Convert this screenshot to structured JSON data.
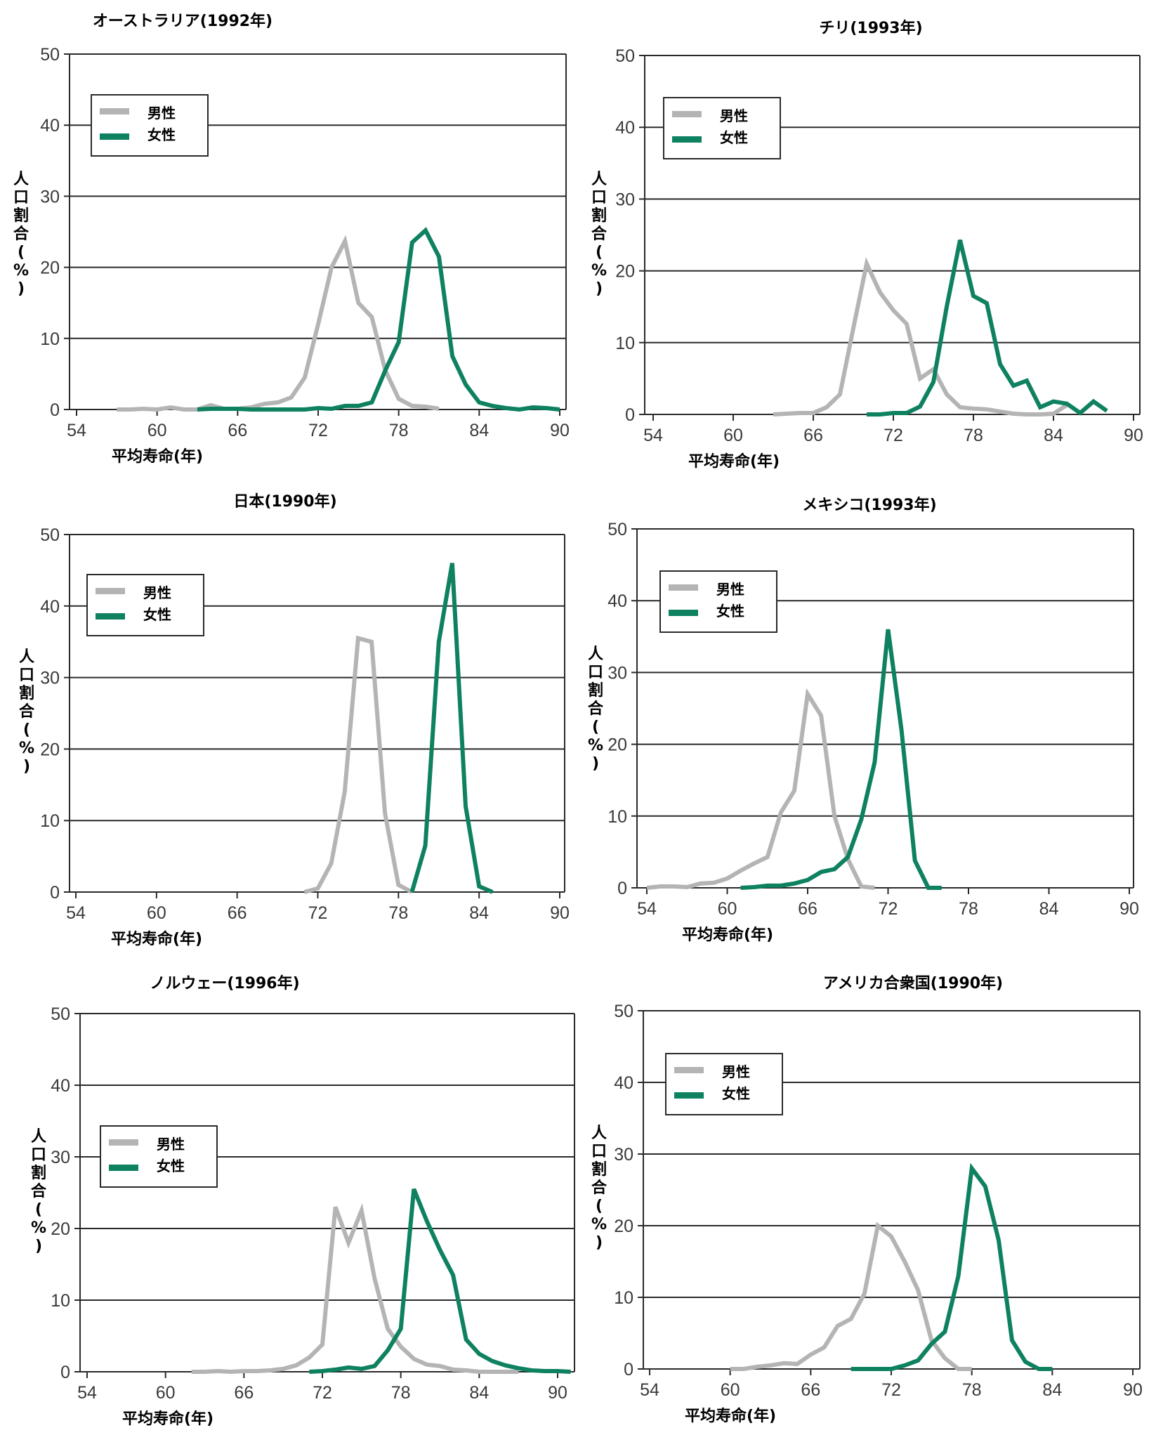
{
  "colors": {
    "male": "#b4b4b4",
    "female": "#0e8160",
    "grid": "#2a2a2a",
    "axis": "#2a2a2a"
  },
  "legend": {
    "male": "男性",
    "female": "女性"
  },
  "axis_text": {
    "xlabel": "平均寿命(年)",
    "ylabel": [
      "人",
      "口",
      "割",
      "合",
      "(",
      "%",
      ")"
    ]
  },
  "chart_data": [
    {
      "type": "line",
      "title": "オーストラリア(1992年)",
      "xlabel": "平均寿命(年)",
      "ylabel": "人口割合(%)",
      "xlim": [
        54,
        90
      ],
      "ylim": [
        0,
        50
      ],
      "xticks": [
        54,
        60,
        66,
        72,
        78,
        84,
        90
      ],
      "yticks": [
        0,
        10,
        20,
        30,
        40,
        50
      ],
      "grid": true,
      "legend_position": "top-left",
      "series": [
        {
          "name": "男性",
          "x": [
            57,
            58,
            59,
            60,
            61,
            62,
            63,
            64,
            65,
            66,
            67,
            68,
            69,
            70,
            71,
            72,
            73,
            74,
            75,
            76,
            77,
            78,
            79,
            80,
            81
          ],
          "values": [
            0,
            0,
            0.1,
            0,
            0.3,
            0,
            0,
            0.6,
            0.1,
            0.1,
            0.3,
            0.8,
            1,
            1.7,
            4.5,
            12,
            20,
            23.7,
            15,
            13,
            5.5,
            1.5,
            0.5,
            0.4,
            0.1
          ]
        },
        {
          "name": "女性",
          "x": [
            63,
            64,
            65,
            66,
            67,
            68,
            69,
            70,
            71,
            72,
            73,
            74,
            75,
            76,
            77,
            78,
            79,
            80,
            81,
            82,
            83,
            84,
            85,
            86,
            87,
            88,
            89,
            90
          ],
          "values": [
            0,
            0.1,
            0.1,
            0.1,
            0,
            0,
            0,
            0,
            0,
            0.2,
            0.1,
            0.5,
            0.5,
            1,
            5.5,
            9.5,
            23.5,
            25.2,
            21.5,
            7.5,
            3.5,
            1,
            0.5,
            0.2,
            0,
            0.3,
            0.2,
            0
          ]
        }
      ]
    },
    {
      "type": "line",
      "title": "チリ(1993年)",
      "xlabel": "平均寿命(年)",
      "ylabel": "人口割合(%)",
      "xlim": [
        54,
        90
      ],
      "ylim": [
        0,
        50
      ],
      "xticks": [
        54,
        60,
        66,
        72,
        78,
        84,
        90
      ],
      "yticks": [
        0,
        10,
        20,
        30,
        40,
        50
      ],
      "grid": true,
      "legend_position": "top-left",
      "series": [
        {
          "name": "男性",
          "x": [
            63,
            64,
            65,
            66,
            67,
            68,
            69,
            70,
            71,
            72,
            73,
            74,
            75,
            76,
            77,
            78,
            79,
            80,
            81,
            82,
            83,
            84,
            85
          ],
          "values": [
            0,
            0.1,
            0.2,
            0.2,
            1,
            2.8,
            12,
            21,
            17,
            14.5,
            12.6,
            5,
            6.3,
            2.8,
            1,
            0.8,
            0.7,
            0.4,
            0.1,
            0,
            0,
            0.1,
            1.3
          ]
        },
        {
          "name": "女性",
          "x": [
            70,
            71,
            72,
            73,
            74,
            75,
            76,
            77,
            78,
            79,
            80,
            81,
            82,
            83,
            84,
            85,
            86,
            87,
            88
          ],
          "values": [
            0,
            0,
            0.2,
            0.2,
            1.1,
            4.5,
            15,
            24.3,
            16.5,
            15.5,
            7,
            4,
            4.7,
            1,
            1.8,
            1.5,
            0.2,
            1.8,
            0.5
          ]
        }
      ]
    },
    {
      "type": "line",
      "title": "日本(1990年)",
      "xlabel": "平均寿命(年)",
      "ylabel": "人口割合(%)",
      "xlim": [
        54,
        90
      ],
      "ylim": [
        0,
        50
      ],
      "xticks": [
        54,
        60,
        66,
        72,
        78,
        84,
        90
      ],
      "yticks": [
        0,
        10,
        20,
        30,
        40,
        50
      ],
      "grid": true,
      "legend_position": "top-left",
      "series": [
        {
          "name": "男性",
          "x": [
            71,
            72,
            73,
            74,
            75,
            76,
            77,
            78,
            79
          ],
          "values": [
            0,
            0.5,
            4,
            14,
            35.5,
            35,
            11,
            1,
            0
          ]
        },
        {
          "name": "女性",
          "x": [
            79,
            80,
            81,
            82,
            83,
            84,
            85
          ],
          "values": [
            0,
            6.5,
            35,
            46,
            12,
            0.8,
            0
          ]
        }
      ]
    },
    {
      "type": "line",
      "title": "メキシコ(1993年)",
      "xlabel": "平均寿命(年)",
      "ylabel": "人口割合(%)",
      "xlim": [
        54,
        90
      ],
      "ylim": [
        0,
        50
      ],
      "xticks": [
        54,
        60,
        66,
        72,
        78,
        84,
        90
      ],
      "yticks": [
        0,
        10,
        20,
        30,
        40,
        50
      ],
      "grid": true,
      "legend_position": "top-left",
      "series": [
        {
          "name": "男性",
          "x": [
            54,
            55,
            56,
            57,
            58,
            59,
            60,
            61,
            62,
            63,
            64,
            65,
            66,
            67,
            68,
            69,
            70,
            71
          ],
          "values": [
            0,
            0.2,
            0.2,
            0.1,
            0.6,
            0.7,
            1.3,
            2.4,
            3.4,
            4.3,
            10.5,
            13.5,
            27,
            24,
            10,
            4,
            0.2,
            0
          ]
        },
        {
          "name": "女性",
          "x": [
            61,
            62,
            63,
            64,
            65,
            66,
            67,
            68,
            69,
            70,
            71,
            72,
            73,
            74,
            75,
            76
          ],
          "values": [
            0,
            0.1,
            0.3,
            0.3,
            0.6,
            1.1,
            2.2,
            2.6,
            4.3,
            9.5,
            17.5,
            36,
            22,
            3.8,
            0,
            0
          ]
        }
      ]
    },
    {
      "type": "line",
      "title": "ノルウェー(1996年)",
      "xlabel": "平均寿命(年)",
      "ylabel": "人口割合(%)",
      "xlim": [
        54,
        90
      ],
      "ylim": [
        0,
        50
      ],
      "xticks": [
        54,
        60,
        66,
        72,
        78,
        84,
        90
      ],
      "yticks": [
        0,
        10,
        20,
        30,
        40,
        50
      ],
      "grid": true,
      "legend_position": "center-left",
      "series": [
        {
          "name": "男性",
          "x": [
            62,
            63,
            64,
            65,
            66,
            67,
            68,
            69,
            70,
            71,
            72,
            73,
            74,
            75,
            76,
            77,
            78,
            79,
            80,
            81,
            82,
            83,
            84,
            85,
            86,
            87
          ],
          "values": [
            0,
            0,
            0.1,
            0,
            0.1,
            0.1,
            0.2,
            0.4,
            0.9,
            2,
            3.8,
            23,
            18,
            22.5,
            13,
            6,
            3.5,
            1.8,
            1,
            0.8,
            0.3,
            0.2,
            0,
            0,
            0,
            0
          ]
        },
        {
          "name": "女性",
          "x": [
            71,
            72,
            73,
            74,
            75,
            76,
            77,
            78,
            79,
            80,
            81,
            82,
            83,
            84,
            85,
            86,
            87,
            88,
            89,
            90,
            91
          ],
          "values": [
            0,
            0.1,
            0.3,
            0.6,
            0.4,
            0.8,
            3,
            6,
            25.5,
            21,
            17,
            13.5,
            4.5,
            2.5,
            1.5,
            0.9,
            0.5,
            0.2,
            0.1,
            0.1,
            0
          ]
        }
      ]
    },
    {
      "type": "line",
      "title": "アメリカ合衆国(1990年)",
      "xlabel": "平均寿命(年)",
      "ylabel": "人口割合(%)",
      "xlim": [
        54,
        90
      ],
      "ylim": [
        0,
        50
      ],
      "xticks": [
        54,
        60,
        66,
        72,
        78,
        84,
        90
      ],
      "yticks": [
        0,
        10,
        20,
        30,
        40,
        50
      ],
      "grid": true,
      "legend_position": "top-left",
      "series": [
        {
          "name": "男性",
          "x": [
            60,
            61,
            62,
            63,
            64,
            65,
            66,
            67,
            68,
            69,
            70,
            71,
            72,
            73,
            74,
            75,
            76,
            77,
            78
          ],
          "values": [
            0,
            0,
            0.3,
            0.5,
            0.8,
            0.7,
            2,
            3,
            6,
            7,
            10.5,
            20,
            18.5,
            15,
            11,
            4,
            1.5,
            0,
            0
          ]
        },
        {
          "name": "女性",
          "x": [
            69,
            70,
            71,
            72,
            73,
            74,
            75,
            76,
            77,
            78,
            79,
            80,
            81,
            82,
            83,
            84
          ],
          "values": [
            0,
            0,
            0,
            0,
            0.5,
            1.2,
            3.5,
            5.2,
            13,
            28,
            25.5,
            18,
            4,
            1,
            0,
            0
          ]
        }
      ]
    }
  ]
}
